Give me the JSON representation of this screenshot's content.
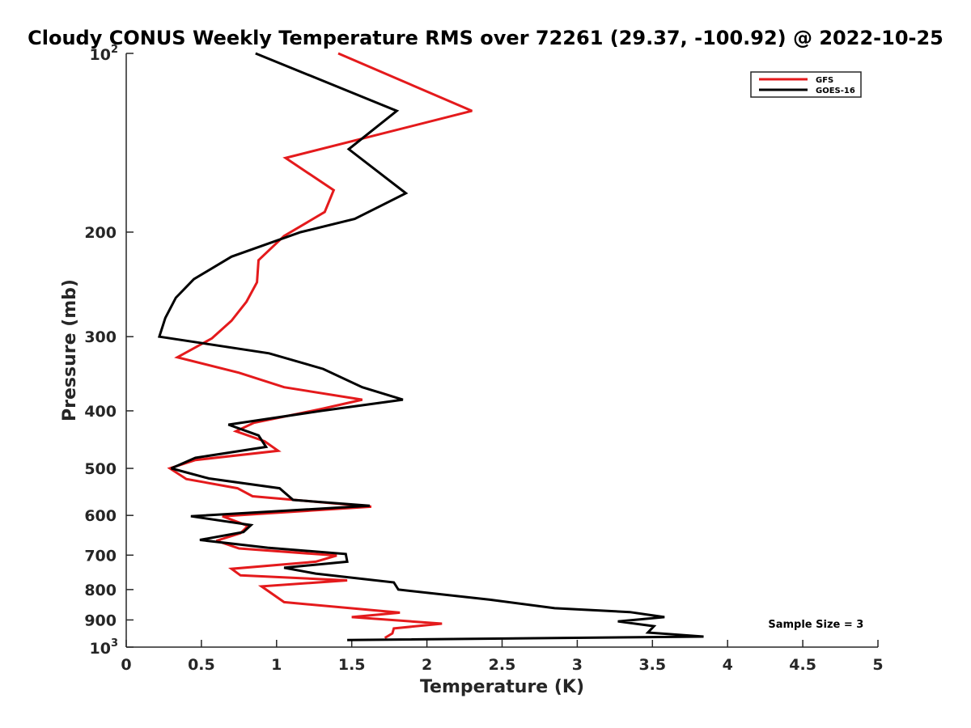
{
  "chart_data": {
    "type": "line",
    "title": "Cloudy CONUS Weekly Temperature RMS over 72261 (29.37, -100.92) @ 2022-10-25",
    "xlabel": "Temperature (K)",
    "ylabel": "Pressure (mb)",
    "xlim": [
      0,
      5
    ],
    "ylim": [
      100,
      1000
    ],
    "yscale": "log",
    "yreversed": true,
    "grid": false,
    "legend_position": "top-right",
    "x_ticks": [
      "0",
      "0.5",
      "1",
      "1.5",
      "2",
      "2.5",
      "3",
      "3.5",
      "4",
      "4.5",
      "5"
    ],
    "y_ticks": [
      {
        "value": 100,
        "base": "10",
        "exp": "2"
      },
      {
        "value": 200,
        "label": "200"
      },
      {
        "value": 300,
        "label": "300"
      },
      {
        "value": 400,
        "label": "400"
      },
      {
        "value": 500,
        "label": "500"
      },
      {
        "value": 600,
        "label": "600"
      },
      {
        "value": 700,
        "label": "700"
      },
      {
        "value": 800,
        "label": "800"
      },
      {
        "value": 900,
        "label": "900"
      },
      {
        "value": 1000,
        "base": "10",
        "exp": "3"
      }
    ],
    "series": [
      {
        "name": "GFS",
        "color": "#e41a1c",
        "points": [
          [
            1.41,
            100
          ],
          [
            2.3,
            125
          ],
          [
            1.06,
            150
          ],
          [
            1.38,
            170
          ],
          [
            1.32,
            185
          ],
          [
            1.05,
            203
          ],
          [
            0.88,
            223
          ],
          [
            0.87,
            243
          ],
          [
            0.8,
            262
          ],
          [
            0.7,
            282
          ],
          [
            0.57,
            302
          ],
          [
            0.34,
            325
          ],
          [
            0.75,
            345
          ],
          [
            1.05,
            365
          ],
          [
            1.57,
            383
          ],
          [
            1.3,
            397
          ],
          [
            0.85,
            419
          ],
          [
            0.73,
            433
          ],
          [
            0.92,
            450
          ],
          [
            1.01,
            467
          ],
          [
            0.46,
            484
          ],
          [
            0.29,
            500
          ],
          [
            0.4,
            521
          ],
          [
            0.74,
            540
          ],
          [
            0.84,
            557
          ],
          [
            1.63,
            580
          ],
          [
            0.64,
            602
          ],
          [
            0.81,
            625
          ],
          [
            0.76,
            643
          ],
          [
            0.6,
            662
          ],
          [
            0.75,
            682
          ],
          [
            1.4,
            701
          ],
          [
            1.26,
            718
          ],
          [
            0.7,
            738
          ],
          [
            0.76,
            757
          ],
          [
            1.47,
            772
          ],
          [
            0.9,
            790
          ],
          [
            1.05,
            840
          ],
          [
            1.82,
            875
          ],
          [
            1.5,
            890
          ],
          [
            2.1,
            913
          ],
          [
            1.78,
            930
          ],
          [
            1.77,
            948
          ],
          [
            1.72,
            965
          ]
        ]
      },
      {
        "name": "GOES-16",
        "color": "#000000",
        "points": [
          [
            0.86,
            100
          ],
          [
            1.8,
            125
          ],
          [
            1.48,
            145
          ],
          [
            1.86,
            172
          ],
          [
            1.52,
            190
          ],
          [
            1.16,
            200
          ],
          [
            0.7,
            220
          ],
          [
            0.45,
            240
          ],
          [
            0.33,
            258
          ],
          [
            0.26,
            279
          ],
          [
            0.22,
            300
          ],
          [
            0.95,
            320
          ],
          [
            1.31,
            340
          ],
          [
            1.57,
            365
          ],
          [
            1.84,
            383
          ],
          [
            1.3,
            400
          ],
          [
            0.68,
            422
          ],
          [
            0.88,
            440
          ],
          [
            0.93,
            460
          ],
          [
            0.46,
            480
          ],
          [
            0.3,
            500
          ],
          [
            0.55,
            520
          ],
          [
            1.02,
            540
          ],
          [
            1.11,
            565
          ],
          [
            1.62,
            578
          ],
          [
            0.43,
            602
          ],
          [
            0.83,
            623
          ],
          [
            0.78,
            640
          ],
          [
            0.49,
            660
          ],
          [
            0.94,
            680
          ],
          [
            1.46,
            697
          ],
          [
            1.47,
            718
          ],
          [
            1.05,
            735
          ],
          [
            1.26,
            752
          ],
          [
            1.78,
            778
          ],
          [
            1.81,
            800
          ],
          [
            2.42,
            832
          ],
          [
            2.85,
            860
          ],
          [
            3.35,
            873
          ],
          [
            3.58,
            890
          ],
          [
            3.27,
            905
          ],
          [
            3.51,
            922
          ],
          [
            3.47,
            945
          ],
          [
            3.84,
            960
          ],
          [
            1.47,
            973
          ]
        ]
      }
    ],
    "annotations": [
      {
        "text": "Sample Size = 3",
        "x": 4.27,
        "y": 913
      }
    ]
  }
}
